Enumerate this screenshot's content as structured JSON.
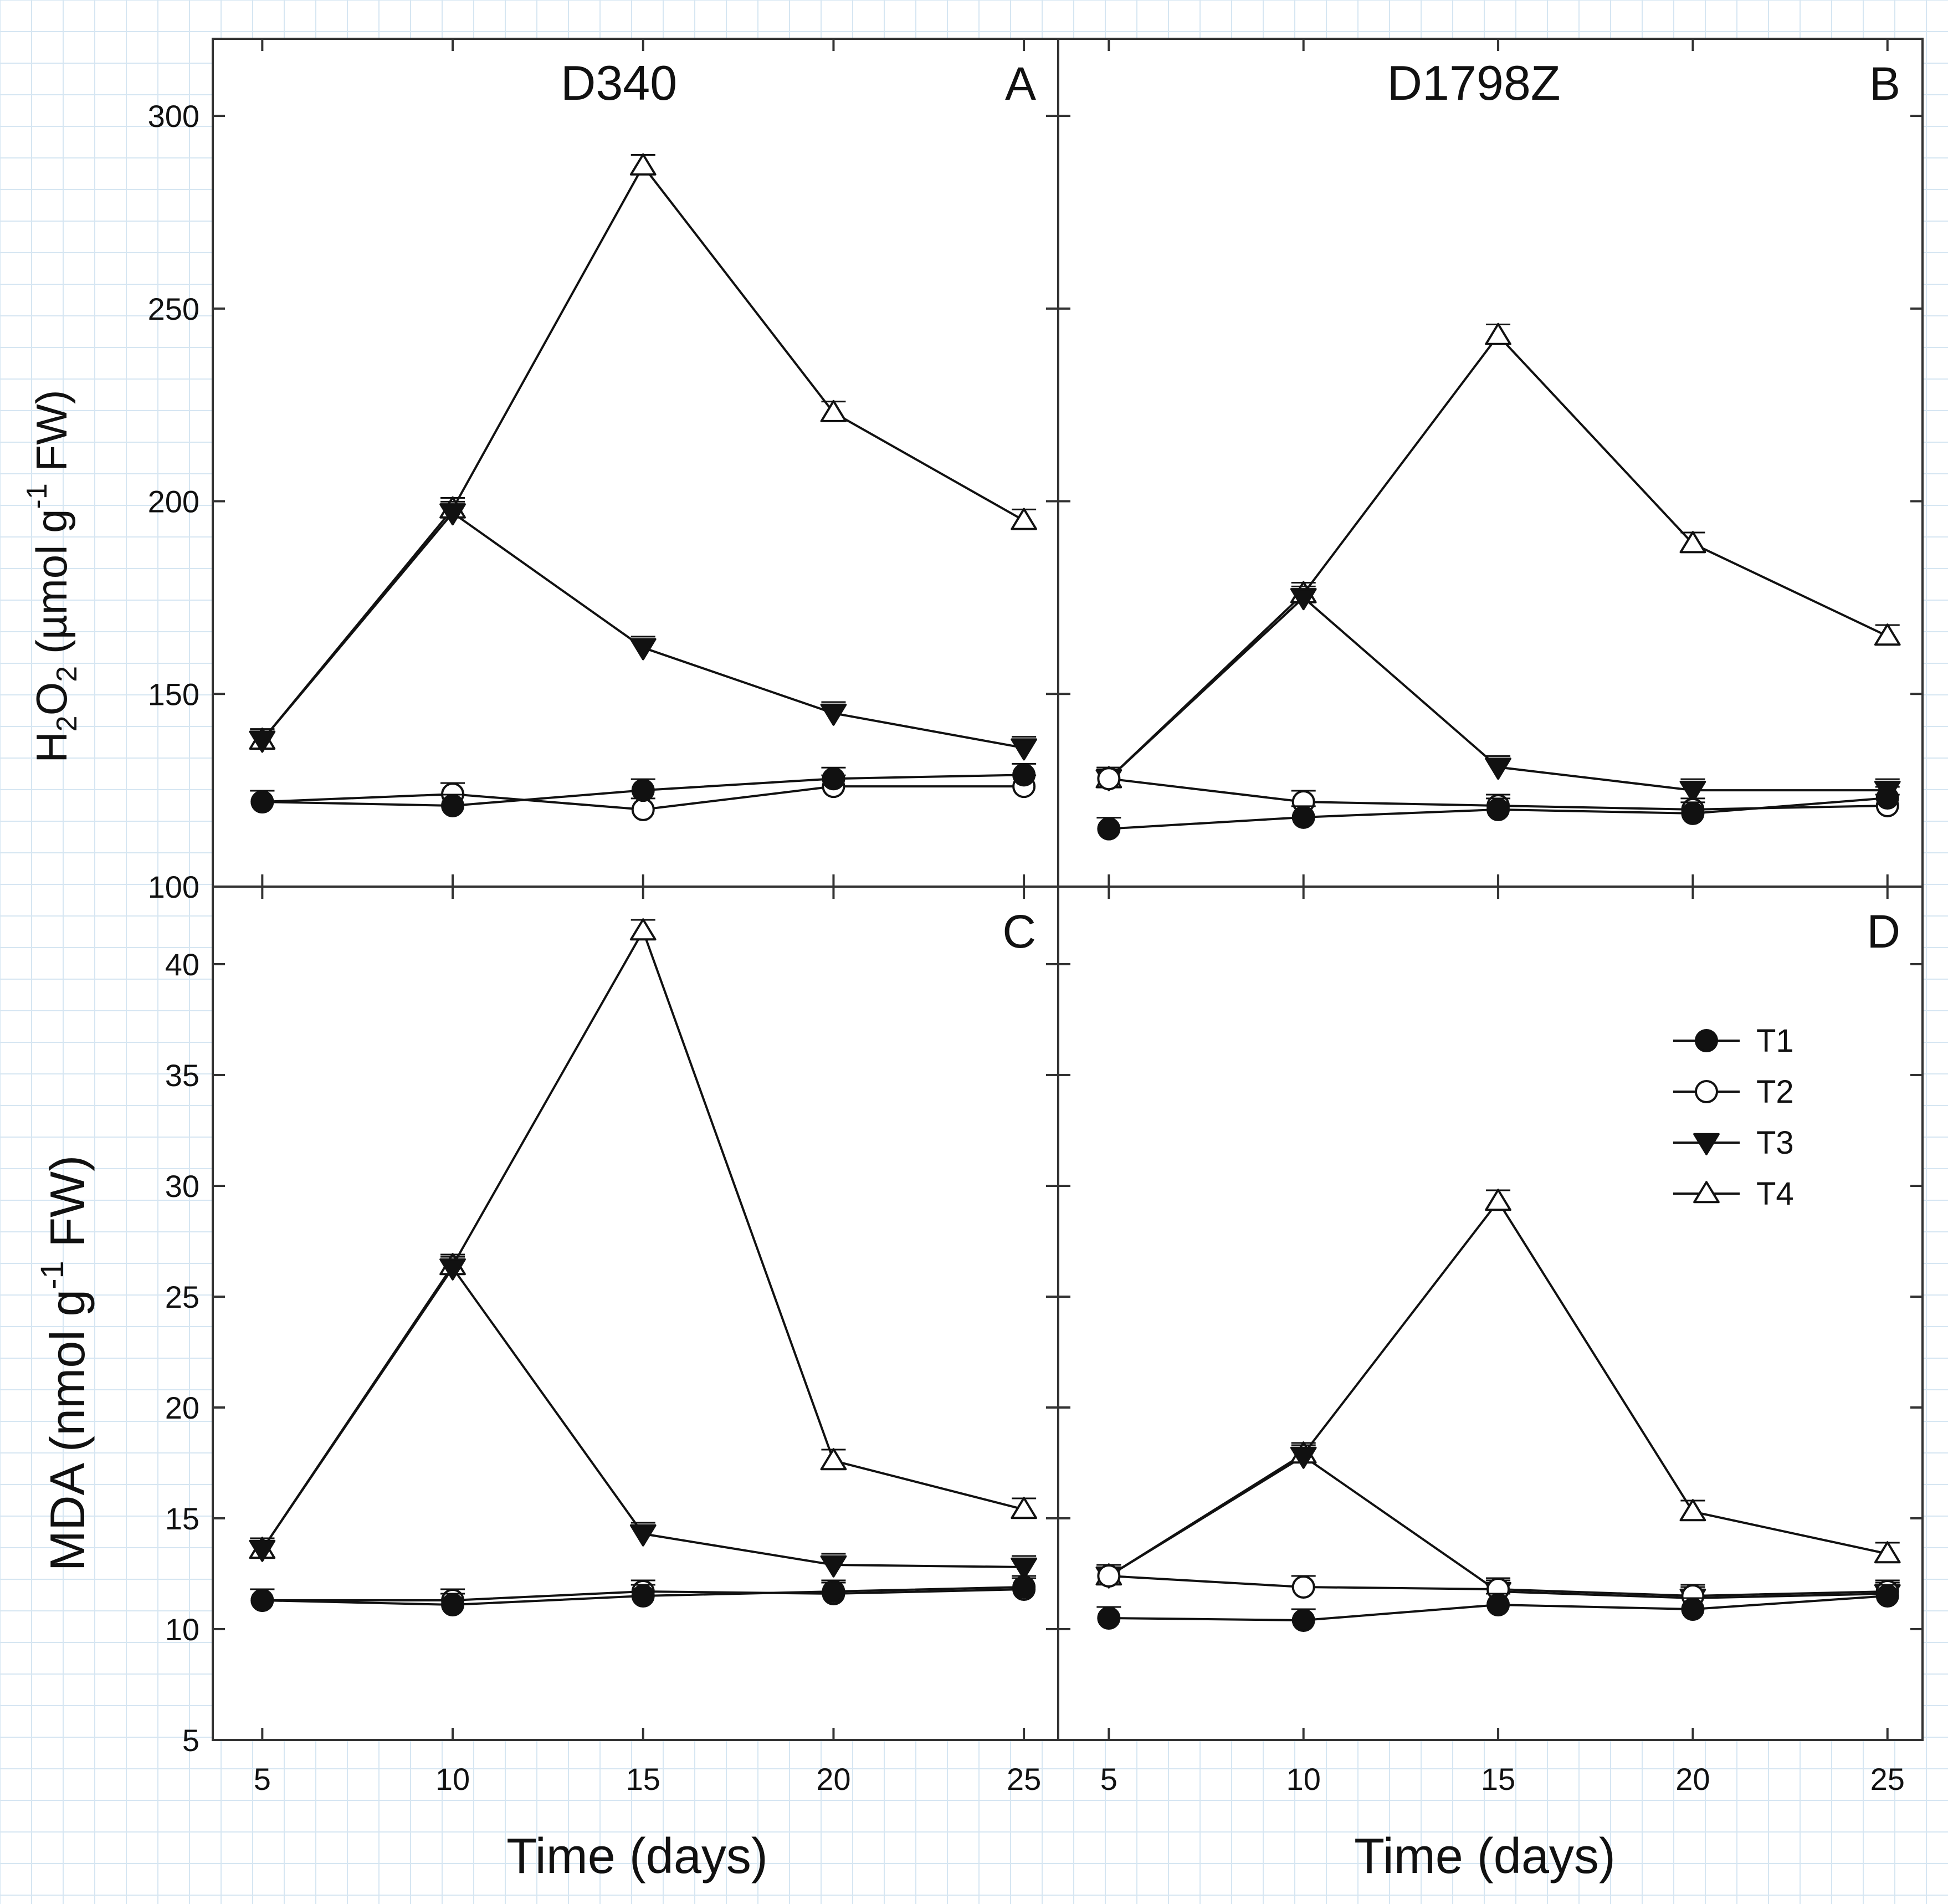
{
  "chart_data": [
    {
      "type": "line",
      "panel": "A",
      "title": "D340",
      "xlabel": "Time (days)",
      "ylabel": "H2O2 (µmol g-1 FW)",
      "x": [
        5,
        10,
        15,
        20,
        25
      ],
      "ylim": [
        100,
        320
      ],
      "yticks": [
        100,
        150,
        200,
        250,
        300
      ],
      "series": [
        {
          "name": "T1",
          "values": [
            122,
            121,
            125,
            128,
            129
          ]
        },
        {
          "name": "T2",
          "values": [
            122,
            124,
            120,
            126,
            126
          ]
        },
        {
          "name": "T3",
          "values": [
            138,
            197,
            162,
            145,
            136
          ]
        },
        {
          "name": "T4",
          "values": [
            138,
            198,
            287,
            223,
            195
          ]
        }
      ]
    },
    {
      "type": "line",
      "panel": "B",
      "title": "D1798Z",
      "xlabel": "Time (days)",
      "x": [
        5,
        10,
        15,
        20,
        25
      ],
      "ylim": [
        100,
        320
      ],
      "yticks": [
        100,
        150,
        200,
        250,
        300
      ],
      "series": [
        {
          "name": "T1",
          "values": [
            115,
            118,
            120,
            119,
            123
          ]
        },
        {
          "name": "T2",
          "values": [
            128,
            122,
            121,
            120,
            121
          ]
        },
        {
          "name": "T3",
          "values": [
            128,
            175,
            131,
            125,
            125
          ]
        },
        {
          "name": "T4",
          "values": [
            128,
            176,
            243,
            189,
            165
          ]
        }
      ]
    },
    {
      "type": "line",
      "panel": "C",
      "xlabel": "Time (days)",
      "ylabel": "MDA (nmol g-1 FW)",
      "x": [
        5,
        10,
        15,
        20,
        25
      ],
      "ylim": [
        5,
        43.5
      ],
      "yticks": [
        5,
        10,
        15,
        20,
        25,
        30,
        35,
        40
      ],
      "series": [
        {
          "name": "T1",
          "values": [
            11.3,
            11.1,
            11.5,
            11.7,
            11.9
          ]
        },
        {
          "name": "T2",
          "values": [
            11.3,
            11.3,
            11.7,
            11.6,
            11.8
          ]
        },
        {
          "name": "T3",
          "values": [
            13.6,
            26.3,
            14.3,
            12.9,
            12.8
          ]
        },
        {
          "name": "T4",
          "values": [
            13.6,
            26.4,
            41.5,
            17.6,
            15.4
          ]
        }
      ]
    },
    {
      "type": "line",
      "panel": "D",
      "xlabel": "Time (days)",
      "x": [
        5,
        10,
        15,
        20,
        25
      ],
      "ylim": [
        5,
        43.5
      ],
      "yticks": [
        5,
        10,
        15,
        20,
        25,
        30,
        35,
        40
      ],
      "series": [
        {
          "name": "T1",
          "values": [
            10.5,
            10.4,
            11.1,
            10.9,
            11.5
          ]
        },
        {
          "name": "T2",
          "values": [
            12.4,
            11.9,
            11.8,
            11.5,
            11.7
          ]
        },
        {
          "name": "T3",
          "values": [
            12.4,
            17.8,
            11.7,
            11.4,
            11.6
          ]
        },
        {
          "name": "T4",
          "values": [
            12.4,
            17.9,
            29.3,
            15.3,
            13.4
          ]
        }
      ]
    }
  ],
  "legend": {
    "entries": [
      {
        "name": "T1",
        "marker": "filled-circle"
      },
      {
        "name": "T2",
        "marker": "open-circle"
      },
      {
        "name": "T3",
        "marker": "filled-down-triangle"
      },
      {
        "name": "T4",
        "marker": "open-up-triangle"
      }
    ],
    "placement": "panel-D top-right"
  },
  "axis_titles": {
    "h2o2": {
      "prefix": "H",
      "sub1": "2",
      "mid": "O",
      "sub2": "2",
      "open": " (µmol g",
      "sup": "-1",
      "close": " FW)"
    },
    "mda": {
      "prefix": "MDA (nmol g",
      "sup": "-1",
      "close": " FW)"
    },
    "time_left": "Time (days)",
    "time_right": "Time (days)"
  },
  "colors": {
    "line": "#111111",
    "frame": "#333333",
    "grid": "#d6e6f2",
    "background": "#ffffff"
  }
}
